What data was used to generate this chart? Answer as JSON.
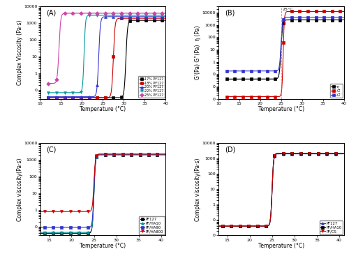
{
  "panel_A": {
    "title": "(A)",
    "xlabel": "Temperature (°C)",
    "ylabel": "Complex Viscosity (Pa·s)",
    "xlim": [
      10,
      40
    ],
    "ylim": [
      0.03,
      10000
    ],
    "xticks": [
      10,
      15,
      20,
      25,
      30,
      35,
      40
    ],
    "series": [
      {
        "label": "17% PF127",
        "color": "#000000",
        "marker": "s",
        "transition_temp": 30.5,
        "low_val": 0.035,
        "high_val": 1500,
        "slope": 5.0
      },
      {
        "label": "18% PF127",
        "color": "#cc0000",
        "marker": "s",
        "transition_temp": 27.5,
        "low_val": 0.035,
        "high_val": 2000,
        "slope": 5.0
      },
      {
        "label": "20% PF127",
        "color": "#3333cc",
        "marker": "^",
        "transition_temp": 24.0,
        "low_val": 0.04,
        "high_val": 2500,
        "slope": 5.0
      },
      {
        "label": "22% PF127",
        "color": "#009999",
        "marker": "v",
        "transition_temp": 20.5,
        "low_val": 0.07,
        "high_val": 3000,
        "slope": 6.0
      },
      {
        "label": "25% PF127",
        "color": "#cc44aa",
        "marker": "D",
        "transition_temp": 14.5,
        "low_val": 0.25,
        "high_val": 4000,
        "slope": 5.0
      }
    ]
  },
  "panel_B": {
    "title": "(B)",
    "annotation": "25°C",
    "xlabel": "Temperature (°C)",
    "ylabel": "G'(Pa) G''(Pa)  η (Pa)",
    "xlim": [
      10,
      40
    ],
    "ylim": [
      0.001,
      30000
    ],
    "xticks": [
      10,
      15,
      20,
      25,
      30,
      35,
      40
    ],
    "series": [
      {
        "label": "η",
        "color": "#000000",
        "marker": "s",
        "transition_temp": 25.0,
        "low_val": 0.04,
        "high_val": 2500,
        "slope": 5.0
      },
      {
        "label": "G'",
        "color": "#cc0000",
        "marker": "s",
        "transition_temp": 25.5,
        "low_val": 0.0015,
        "high_val": 12000,
        "slope": 7.0
      },
      {
        "label": "G''",
        "color": "#3333cc",
        "marker": "s",
        "transition_temp": 25.0,
        "low_val": 0.18,
        "high_val": 4000,
        "slope": 5.5
      }
    ]
  },
  "panel_C": {
    "title": "(C)",
    "xlabel": "Temperature (°C)",
    "ylabel": "Complex viscosity(Pa·s)",
    "xlim": [
      13,
      41
    ],
    "ylim": [
      0.03,
      10000
    ],
    "xticks": [
      15,
      20,
      25,
      30,
      35,
      40
    ],
    "series": [
      {
        "label": "PF127",
        "color": "#000000",
        "marker": "s",
        "transition_temp": 25.0,
        "low_val": 0.04,
        "high_val": 2000,
        "slope": 6.0
      },
      {
        "label": "PF/HA10",
        "color": "#009999",
        "marker": "^",
        "transition_temp": 25.0,
        "low_val": 0.045,
        "high_val": 2100,
        "slope": 6.0
      },
      {
        "label": "PF/HA90",
        "color": "#3333cc",
        "marker": "s",
        "transition_temp": 25.0,
        "low_val": 0.09,
        "high_val": 2200,
        "slope": 6.0
      },
      {
        "label": "PF/HA800",
        "color": "#cc0000",
        "marker": "v",
        "transition_temp": 25.0,
        "low_val": 0.8,
        "high_val": 2200,
        "slope": 6.0
      }
    ]
  },
  "panel_D": {
    "title": "(D)",
    "xlabel": "Temperature (°C)",
    "ylabel": "Complex viscosity(Pa·s)",
    "xlim": [
      13,
      41
    ],
    "ylim": [
      0.01,
      10000
    ],
    "xticks": [
      15,
      20,
      25,
      30,
      35,
      40
    ],
    "series": [
      {
        "label": "PF127",
        "color": "#3333cc",
        "marker": "^",
        "transition_temp": 25.0,
        "low_val": 0.04,
        "high_val": 2000,
        "slope": 6.0
      },
      {
        "label": "PF/HA10",
        "color": "#000000",
        "marker": "s",
        "transition_temp": 25.0,
        "low_val": 0.04,
        "high_val": 2100,
        "slope": 6.0
      },
      {
        "label": "PF/CS",
        "color": "#cc0000",
        "marker": "v",
        "transition_temp": 25.0,
        "low_val": 0.04,
        "high_val": 2200,
        "slope": 6.0
      }
    ]
  }
}
